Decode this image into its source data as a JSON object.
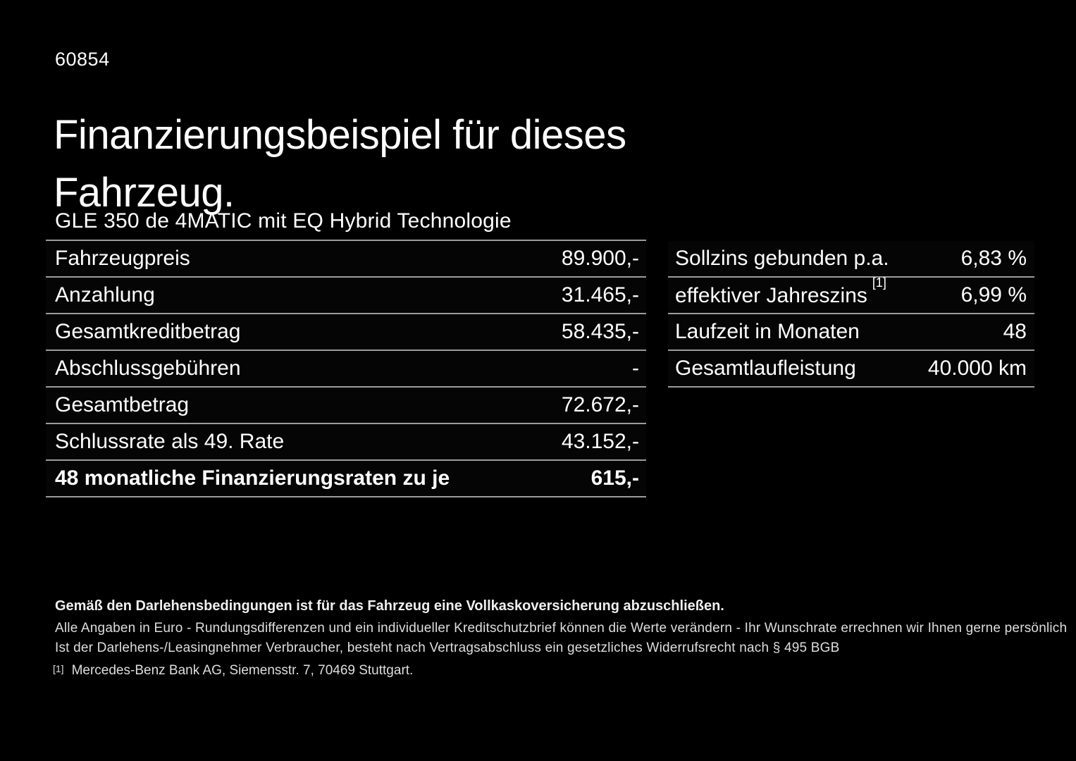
{
  "page": {
    "doc_id": "60854",
    "title": "Finanzierungsbeispiel für dieses Fahrzeug.",
    "subtitle": "GLE 350 de 4MATIC mit EQ Hybrid Technologie"
  },
  "colors": {
    "background": "#000000",
    "text": "#ffffff",
    "divider": "#9c9c9c",
    "footer_text": "#dedede"
  },
  "left_table": {
    "rows": [
      {
        "label": "Fahrzeugpreis",
        "value": "89.900,-"
      },
      {
        "label": "Anzahlung",
        "value": "31.465,-"
      },
      {
        "label": "Gesamtkreditbetrag",
        "value": "58.435,-"
      },
      {
        "label": "Abschlussgebühren",
        "value": "-"
      },
      {
        "label": "Gesamtbetrag",
        "value": "72.672,-"
      },
      {
        "label": "Schlussrate als 49. Rate",
        "value": "43.152,-"
      },
      {
        "label": "48 monatliche Finanzierungsraten zu je",
        "value": "615,-",
        "emphasis": true
      }
    ]
  },
  "right_table": {
    "rows": [
      {
        "label": "Sollzins gebunden p.a.",
        "value": "6,83 %"
      },
      {
        "label": "effektiver Jahreszins",
        "sup": "[1]",
        "value": "6,99 %"
      },
      {
        "label": "Laufzeit in Monaten",
        "value": "48"
      },
      {
        "label": "Gesamtlaufleistung",
        "value": "40.000 km"
      }
    ]
  },
  "footer": {
    "insurance_note": "Gemäß den Darlehensbedingungen ist für das Fahrzeug eine Vollkaskoversicherung abzuschließen.",
    "disclaimer_1": "Alle Angaben in Euro - Rundungsdifferenzen und ein individueller Kreditschutzbrief können die Werte verändern - Ihr Wunschrate errechnen wir Ihnen gerne persönlich",
    "disclaimer_2": "Ist der Darlehens-/Leasingnehmer Verbraucher, besteht nach Vertragsabschluss ein gesetzliches Widerrufsrecht nach § 495 BGB",
    "footnote_marker": "[1]",
    "footnote_text": "Mercedes-Benz Bank AG, Siemensstr. 7, 70469 Stuttgart."
  }
}
